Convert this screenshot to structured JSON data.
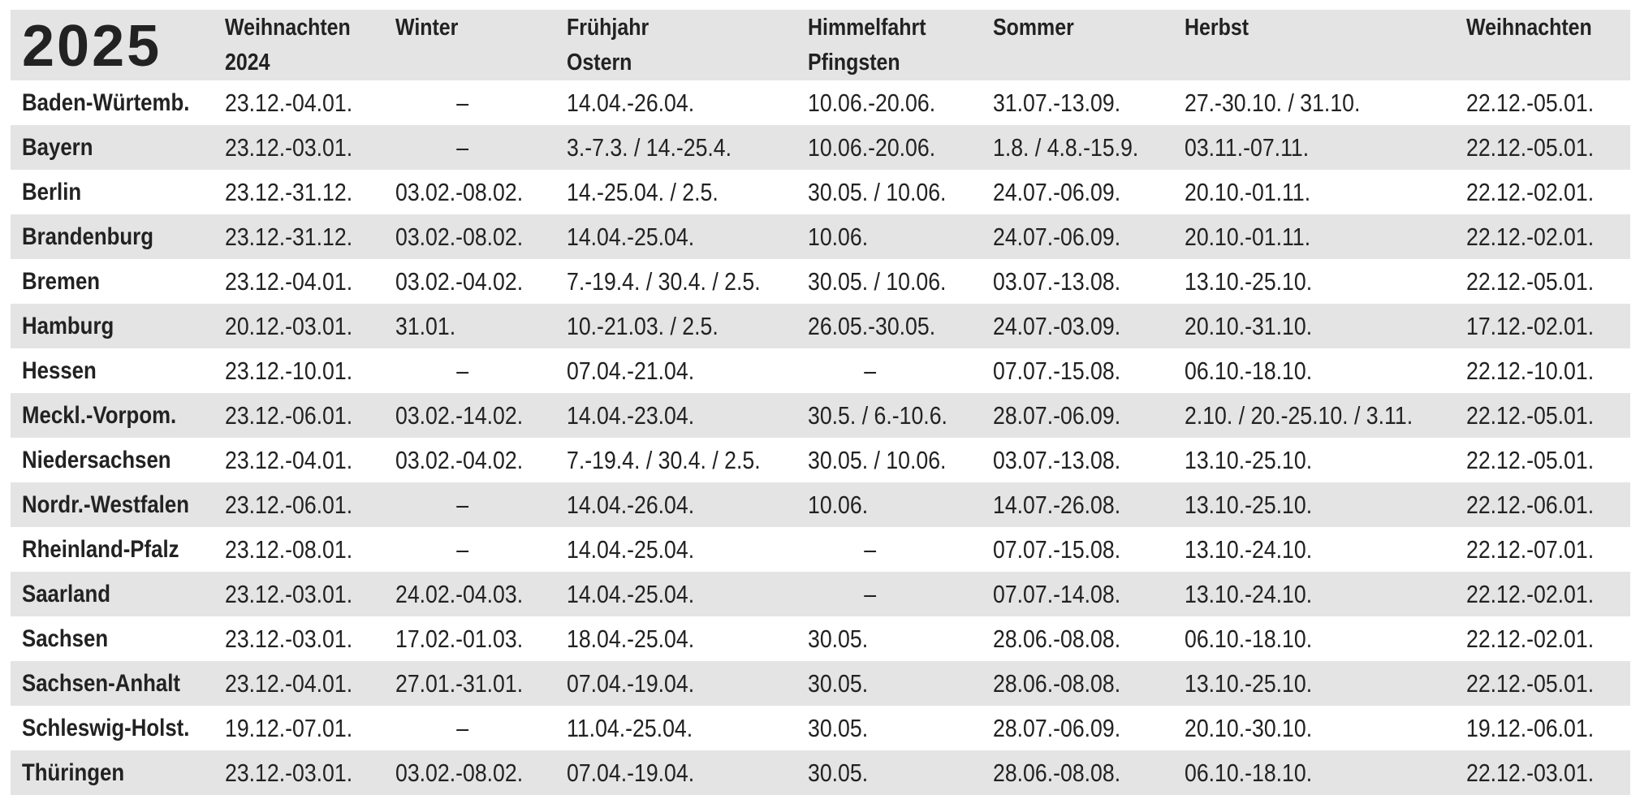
{
  "year": "2025",
  "columns": [
    {
      "line1": "Weihnachten",
      "line2": "2024"
    },
    {
      "line1": "Winter",
      "line2": ""
    },
    {
      "line1": "Frühjahr",
      "line2": "Ostern"
    },
    {
      "line1": "Himmelfahrt",
      "line2": "Pfingsten"
    },
    {
      "line1": "Sommer",
      "line2": ""
    },
    {
      "line1": "Herbst",
      "line2": ""
    },
    {
      "line1": "Weihnachten",
      "line2": ""
    }
  ],
  "rows": [
    {
      "state": "Baden-Würtemb.",
      "cells": [
        "23.12.-04.01.",
        "–",
        "14.04.-26.04.",
        "10.06.-20.06.",
        "31.07.-13.09.",
        "27.-30.10. / 31.10.",
        "22.12.-05.01."
      ]
    },
    {
      "state": "Bayern",
      "cells": [
        "23.12.-03.01.",
        "–",
        "3.-7.3. / 14.-25.4.",
        "10.06.-20.06.",
        "1.8. / 4.8.-15.9.",
        "03.11.-07.11.",
        "22.12.-05.01."
      ]
    },
    {
      "state": "Berlin",
      "cells": [
        "23.12.-31.12.",
        "03.02.-08.02.",
        "14.-25.04. / 2.5.",
        "30.05. / 10.06.",
        "24.07.-06.09.",
        "20.10.-01.11.",
        "22.12.-02.01."
      ]
    },
    {
      "state": "Brandenburg",
      "cells": [
        "23.12.-31.12.",
        "03.02.-08.02.",
        "14.04.-25.04.",
        "10.06.",
        "24.07.-06.09.",
        "20.10.-01.11.",
        "22.12.-02.01."
      ]
    },
    {
      "state": "Bremen",
      "cells": [
        "23.12.-04.01.",
        "03.02.-04.02.",
        "7.-19.4. / 30.4. / 2.5.",
        "30.05. / 10.06.",
        "03.07.-13.08.",
        "13.10.-25.10.",
        "22.12.-05.01."
      ]
    },
    {
      "state": "Hamburg",
      "cells": [
        "20.12.-03.01.",
        "31.01.",
        "10.-21.03. / 2.5.",
        "26.05.-30.05.",
        "24.07.-03.09.",
        "20.10.-31.10.",
        "17.12.-02.01."
      ]
    },
    {
      "state": "Hessen",
      "cells": [
        "23.12.-10.01.",
        "–",
        "07.04.-21.04.",
        "–",
        "07.07.-15.08.",
        "06.10.-18.10.",
        "22.12.-10.01."
      ]
    },
    {
      "state": "Meckl.-Vorpom.",
      "cells": [
        "23.12.-06.01.",
        "03.02.-14.02.",
        "14.04.-23.04.",
        "30.5. / 6.-10.6.",
        "28.07.-06.09.",
        "2.10. / 20.-25.10. / 3.11.",
        "22.12.-05.01."
      ]
    },
    {
      "state": "Niedersachsen",
      "cells": [
        "23.12.-04.01.",
        "03.02.-04.02.",
        "7.-19.4. / 30.4. / 2.5.",
        "30.05. / 10.06.",
        "03.07.-13.08.",
        "13.10.-25.10.",
        "22.12.-05.01."
      ]
    },
    {
      "state": "Nordr.-Westfalen",
      "cells": [
        "23.12.-06.01.",
        "–",
        "14.04.-26.04.",
        "10.06.",
        "14.07.-26.08.",
        "13.10.-25.10.",
        "22.12.-06.01."
      ]
    },
    {
      "state": "Rheinland-Pfalz",
      "cells": [
        "23.12.-08.01.",
        "–",
        "14.04.-25.04.",
        "–",
        "07.07.-15.08.",
        "13.10.-24.10.",
        "22.12.-07.01."
      ]
    },
    {
      "state": "Saarland",
      "cells": [
        "23.12.-03.01.",
        "24.02.-04.03.",
        "14.04.-25.04.",
        "–",
        "07.07.-14.08.",
        "13.10.-24.10.",
        "22.12.-02.01."
      ]
    },
    {
      "state": "Sachsen",
      "cells": [
        "23.12.-03.01.",
        "17.02.-01.03.",
        "18.04.-25.04.",
        "30.05.",
        "28.06.-08.08.",
        "06.10.-18.10.",
        "22.12.-02.01."
      ]
    },
    {
      "state": "Sachsen-Anhalt",
      "cells": [
        "23.12.-04.01.",
        "27.01.-31.01.",
        "07.04.-19.04.",
        "30.05.",
        "28.06.-08.08.",
        "13.10.-25.10.",
        "22.12.-05.01."
      ]
    },
    {
      "state": "Schleswig-Holst.",
      "cells": [
        "19.12.-07.01.",
        "–",
        "11.04.-25.04.",
        "30.05.",
        "28.07.-06.09.",
        "20.10.-30.10.",
        "19.12.-06.01."
      ]
    },
    {
      "state": "Thüringen",
      "cells": [
        "23.12.-03.01.",
        "03.02.-08.02.",
        "07.04.-19.04.",
        "30.05.",
        "28.06.-08.08.",
        "06.10.-18.10.",
        "22.12.-03.01."
      ]
    }
  ]
}
